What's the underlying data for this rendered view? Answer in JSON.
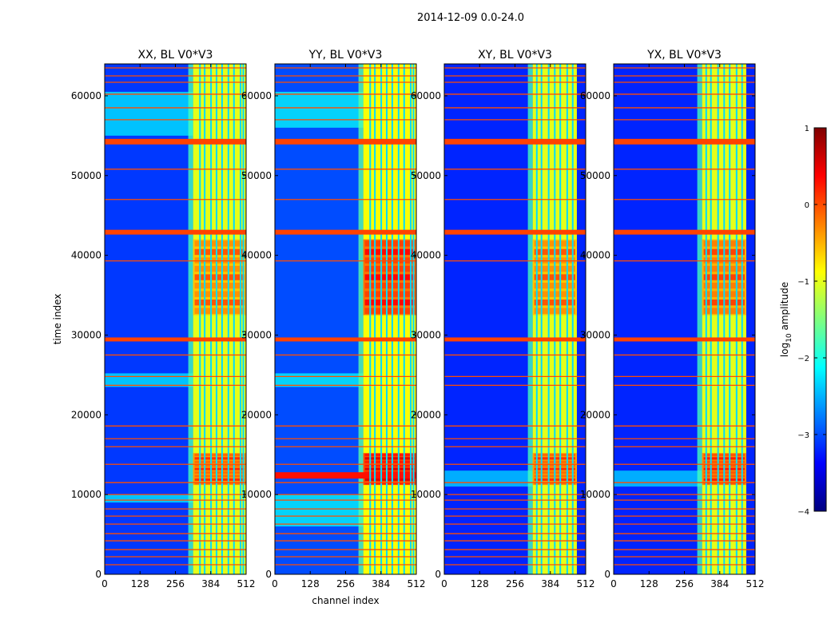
{
  "suptitle": "2014-12-09 0.0-24.0",
  "chart_data": [
    {
      "type": "heatmap",
      "title": "XX, BL V0*V3",
      "xlabel": "",
      "ylabel": "time index",
      "xlim": [
        0,
        512
      ],
      "ylim": [
        0,
        64000
      ],
      "xticks": [
        "0",
        "128",
        "256",
        "384",
        "512"
      ],
      "yticks": [
        "0",
        "10000",
        "20000",
        "30000",
        "40000",
        "50000",
        "60000"
      ],
      "background_log10": -3.1,
      "bright_channel_range": [
        320,
        512
      ],
      "bright_level_log10": -1.0,
      "vertical_line_channels": [
        345,
        362,
        385,
        405,
        425,
        448,
        468,
        492,
        502
      ],
      "flag_rows_time": [
        1200,
        2200,
        3100,
        4200,
        5100,
        6300,
        7300,
        8200,
        9300,
        10000,
        11500,
        13800,
        16000,
        17000,
        18600,
        23700,
        24800,
        27500,
        29500,
        39300,
        42800,
        47000,
        50800,
        54200,
        57000,
        58500,
        60200,
        61700,
        62500,
        63500
      ],
      "thick_flag_rows": [
        {
          "t0": 29200,
          "t1": 29700
        },
        {
          "t0": 42600,
          "t1": 43200
        },
        {
          "t0": 53900,
          "t1": 54600
        }
      ],
      "bursts": [
        {
          "t0": 11200,
          "t1": 15200,
          "level_log10": 0.2
        },
        {
          "t0": 32500,
          "t1": 42000,
          "level_log10": 0.0
        }
      ],
      "light_bands": [
        {
          "t0": 55000,
          "t1": 60500
        },
        {
          "t0": 23500,
          "t1": 25200
        },
        {
          "t0": 9000,
          "t1": 10000
        }
      ]
    },
    {
      "type": "heatmap",
      "title": "YY, BL V0*V3",
      "xlabel": "channel index",
      "ylabel": "",
      "xlim": [
        0,
        512
      ],
      "ylim": [
        0,
        64000
      ],
      "xticks": [
        "0",
        "128",
        "256",
        "384",
        "512"
      ],
      "yticks": [
        "0",
        "10000",
        "20000",
        "30000",
        "40000",
        "50000",
        "60000"
      ],
      "background_log10": -3.0,
      "bright_channel_range": [
        320,
        512
      ],
      "bright_level_log10": -0.9,
      "vertical_line_channels": [
        345,
        362,
        385,
        405,
        425,
        448,
        468,
        492,
        502
      ],
      "flag_rows_time": [
        1200,
        2200,
        3100,
        4200,
        5100,
        6300,
        7300,
        8200,
        9300,
        10000,
        11500,
        13800,
        16000,
        17000,
        18600,
        23700,
        24800,
        27500,
        29500,
        39300,
        42800,
        47000,
        50800,
        54200,
        57000,
        58500,
        60200,
        61700,
        62500,
        63500
      ],
      "thick_flag_rows": [
        {
          "t0": 29200,
          "t1": 29700
        },
        {
          "t0": 42600,
          "t1": 43200
        },
        {
          "t0": 53900,
          "t1": 54600
        }
      ],
      "bursts": [
        {
          "t0": 11200,
          "t1": 15200,
          "level_log10": 0.6
        },
        {
          "t0": 32500,
          "t1": 42000,
          "level_log10": 0.4
        }
      ],
      "light_bands": [
        {
          "t0": 56000,
          "t1": 60500
        },
        {
          "t0": 23500,
          "t1": 25200
        },
        {
          "t0": 6000,
          "t1": 10000
        }
      ],
      "horizontal_streak": {
        "t0": 12000,
        "t1": 12800
      }
    },
    {
      "type": "heatmap",
      "title": "XY, BL V0*V3",
      "xlabel": "",
      "ylabel": "",
      "xlim": [
        0,
        512
      ],
      "ylim": [
        0,
        64000
      ],
      "xticks": [
        "0",
        "128",
        "256",
        "384",
        "512"
      ],
      "yticks": [
        "0",
        "10000",
        "20000",
        "30000",
        "40000",
        "50000",
        "60000"
      ],
      "background_log10": -3.2,
      "bright_channel_range": [
        320,
        480
      ],
      "bright_level_log10": -1.0,
      "vertical_line_channels": [
        335,
        352,
        378,
        400,
        420,
        445,
        465
      ],
      "flag_rows_time": [
        1200,
        2200,
        3100,
        4200,
        5100,
        6300,
        7300,
        8200,
        9300,
        10000,
        11500,
        13800,
        16000,
        17000,
        18600,
        23700,
        24800,
        27500,
        29500,
        39300,
        42800,
        47000,
        50800,
        54200,
        57000,
        58500,
        60200,
        61700,
        62500,
        63500
      ],
      "thick_flag_rows": [
        {
          "t0": 29200,
          "t1": 29700
        },
        {
          "t0": 42600,
          "t1": 43200
        },
        {
          "t0": 53900,
          "t1": 54600
        }
      ],
      "bursts": [
        {
          "t0": 11200,
          "t1": 15200,
          "level_log10": 0.2
        },
        {
          "t0": 32500,
          "t1": 42000,
          "level_log10": 0.0
        }
      ],
      "light_bands": [
        {
          "t0": 11000,
          "t1": 13000
        }
      ]
    },
    {
      "type": "heatmap",
      "title": "YX, BL V0*V3",
      "xlabel": "",
      "ylabel": "",
      "xlim": [
        0,
        512
      ],
      "ylim": [
        0,
        64000
      ],
      "xticks": [
        "0",
        "128",
        "256",
        "384",
        "512"
      ],
      "yticks": [
        "0",
        "10000",
        "20000",
        "30000",
        "40000",
        "50000",
        "60000"
      ],
      "background_log10": -3.2,
      "bright_channel_range": [
        320,
        480
      ],
      "bright_level_log10": -1.0,
      "vertical_line_channels": [
        335,
        352,
        378,
        400,
        420,
        445,
        465
      ],
      "flag_rows_time": [
        1200,
        2200,
        3100,
        4200,
        5100,
        6300,
        7300,
        8200,
        9300,
        10000,
        11500,
        13800,
        16000,
        17000,
        18600,
        23700,
        24800,
        27500,
        29500,
        39300,
        42800,
        47000,
        50800,
        54200,
        57000,
        58500,
        60200,
        61700,
        62500,
        63500
      ],
      "thick_flag_rows": [
        {
          "t0": 29200,
          "t1": 29700
        },
        {
          "t0": 42600,
          "t1": 43200
        },
        {
          "t0": 53900,
          "t1": 54600
        }
      ],
      "bursts": [
        {
          "t0": 11200,
          "t1": 15200,
          "level_log10": 0.3
        },
        {
          "t0": 32500,
          "t1": 42000,
          "level_log10": 0.1
        }
      ],
      "light_bands": [
        {
          "t0": 11000,
          "t1": 13000
        }
      ]
    }
  ],
  "colorbar": {
    "label_prefix": "log",
    "label_sub": "10",
    "label_suffix": " amplitude",
    "vmin": -4,
    "vmax": 1,
    "ticks": [
      {
        "v": 1,
        "label": "1"
      },
      {
        "v": 0,
        "label": "0"
      },
      {
        "v": -1,
        "label": "−1"
      },
      {
        "v": -2,
        "label": "−2"
      },
      {
        "v": -3,
        "label": "−3"
      },
      {
        "v": -4,
        "label": "−4"
      }
    ],
    "colors": [
      "#00007f",
      "#0000ff",
      "#007fff",
      "#00ffff",
      "#7fff7f",
      "#ffff00",
      "#ff7f00",
      "#ff0000",
      "#7f0000"
    ]
  }
}
